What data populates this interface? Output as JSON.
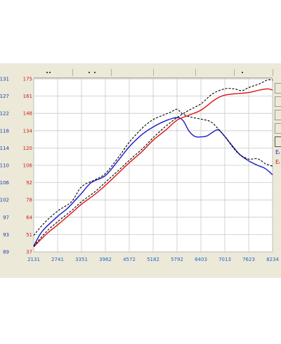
{
  "chart_data": {
    "type": "line",
    "x_ticks": [
      "2131",
      "2741",
      "3351",
      "3962",
      "4572",
      "5182",
      "5792",
      "6403",
      "7013",
      "7623",
      "8234"
    ],
    "xlim": [
      2131,
      8234
    ],
    "y_left_ticks": [
      "131",
      "127",
      "122",
      "118",
      "114",
      "110",
      "106",
      "102",
      "97",
      "93",
      "89"
    ],
    "y_left_lim": [
      89,
      131
    ],
    "y_right_ticks": [
      "175",
      "161",
      "148",
      "134",
      "120",
      "106",
      "92",
      "78",
      "64",
      "51",
      "37"
    ],
    "y_right_lim": [
      37,
      175
    ],
    "grid": true,
    "series": [
      {
        "axis": "left",
        "color": "#1a1acc",
        "dash": false,
        "x": [
          2131,
          2350,
          2741,
          3000,
          3351,
          3600,
          3962,
          4300,
          4572,
          4900,
          5182,
          5500,
          5792,
          5950,
          6100,
          6250,
          6403,
          6550,
          6700,
          6850,
          7013,
          7200,
          7400,
          7623,
          7850,
          8050,
          8234
        ],
        "y": [
          90.4,
          94.0,
          97.6,
          99.6,
          103.2,
          105.8,
          107.5,
          111.3,
          114.5,
          117.5,
          119.3,
          120.8,
          121.6,
          120.8,
          118.3,
          117.0,
          116.9,
          117.1,
          118.0,
          118.6,
          117.0,
          114.8,
          112.6,
          111.1,
          110.0,
          109.2,
          107.7
        ]
      },
      {
        "axis": "left",
        "color": "#000000",
        "dash": true,
        "x": [
          2131,
          2400,
          2741,
          3100,
          3351,
          3700,
          3962,
          4300,
          4572,
          4900,
          5182,
          5450,
          5650,
          5792,
          5950,
          6150,
          6403,
          6650,
          6850,
          7013,
          7250,
          7400,
          7623,
          7850,
          8050,
          8234
        ],
        "y": [
          93.0,
          96.0,
          98.9,
          101.2,
          104.8,
          106.5,
          108.0,
          112.0,
          115.6,
          119.0,
          121.1,
          122.2,
          123.0,
          123.6,
          122.4,
          121.7,
          121.2,
          120.6,
          118.8,
          117.0,
          114.0,
          112.6,
          111.5,
          111.6,
          110.4,
          109.8
        ]
      },
      {
        "axis": "right",
        "color": "#dd1111",
        "dash": false,
        "x": [
          2131,
          2450,
          2741,
          3100,
          3351,
          3700,
          3962,
          4300,
          4572,
          4900,
          5182,
          5500,
          5792,
          6100,
          6403,
          6700,
          6850,
          7013,
          7250,
          7623,
          7900,
          8100,
          8234
        ],
        "y": [
          41.0,
          51.0,
          58.5,
          68.0,
          75.0,
          83.0,
          90.0,
          100.0,
          108.0,
          117.0,
          126.0,
          134.0,
          142.0,
          146.0,
          150.0,
          157.0,
          160.0,
          162.0,
          163.0,
          164.0,
          166.0,
          167.0,
          166.0
        ]
      },
      {
        "axis": "right",
        "color": "#000000",
        "dash": true,
        "x": [
          2131,
          2450,
          2741,
          3100,
          3351,
          3700,
          3962,
          4300,
          4572,
          4900,
          5182,
          5500,
          5792,
          6100,
          6403,
          6700,
          7013,
          7250,
          7450,
          7623,
          7900,
          8100,
          8234
        ],
        "y": [
          41.5,
          53.0,
          61.0,
          70.0,
          77.0,
          85.0,
          92.5,
          102.0,
          110.0,
          119.0,
          128.0,
          137.0,
          144.0,
          150.0,
          155.0,
          163.0,
          167.0,
          167.0,
          165.5,
          168.0,
          171.0,
          174.0,
          174.0
        ]
      }
    ]
  },
  "legend": {
    "item1_text": "Eᵣ",
    "item2_text": "Eᵣ",
    "item1_color": "#1a1acc",
    "item2_color": "#cc1111"
  },
  "colors": {
    "panel_bg": "#ece9d8",
    "plot_bg": "#ffffff",
    "grid": "#c8c8c8",
    "left_axis_text": "#1f3fb0",
    "right_axis_text": "#cc2222",
    "x_axis_text": "#1e66c8"
  }
}
